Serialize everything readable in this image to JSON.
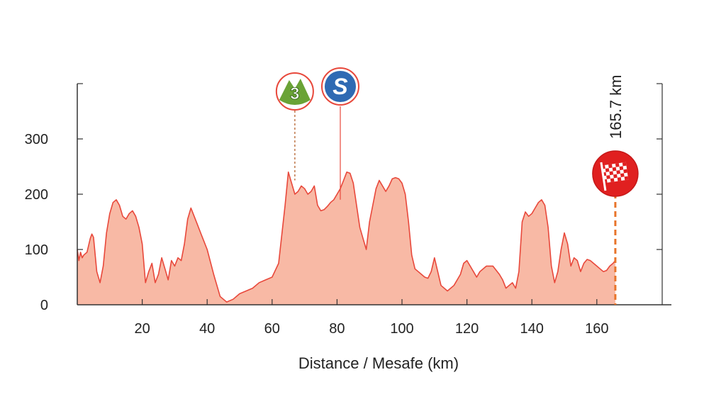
{
  "chart_data": {
    "type": "area",
    "xlabel": "Distance / Mesafe (km)",
    "ylabel": "",
    "xlim": [
      0,
      180
    ],
    "ylim": [
      0,
      400
    ],
    "x_ticks": [
      20,
      40,
      60,
      80,
      100,
      120,
      140,
      160
    ],
    "y_ticks": [
      0,
      100,
      200,
      300
    ],
    "grid": false,
    "colors": {
      "fill": "#f8b9a5",
      "line": "#e8483b",
      "axis": "#333333"
    },
    "series": [
      {
        "x": [
          0,
          0.5,
          1,
          1.5,
          2,
          3,
          4,
          4.5,
          5,
          6,
          7,
          8,
          9,
          10,
          11,
          12,
          13,
          14,
          15,
          16,
          17,
          18,
          19,
          20,
          21,
          22,
          23,
          24,
          25,
          26,
          27,
          28,
          29,
          30,
          31,
          32,
          33,
          34,
          35,
          36,
          37,
          38,
          39,
          40,
          42,
          44,
          46,
          48,
          50,
          52,
          54,
          56,
          58,
          60,
          62,
          64,
          65,
          66,
          67,
          68,
          69,
          70,
          71,
          72,
          73,
          74,
          75,
          76,
          77,
          78,
          79,
          80,
          81,
          82,
          83,
          84,
          85,
          86,
          87,
          88,
          89,
          90,
          91,
          92,
          93,
          94,
          95,
          96,
          97,
          98,
          99,
          100,
          101,
          102,
          103,
          104,
          105,
          106,
          107,
          108,
          109,
          110,
          111,
          112,
          114,
          116,
          118,
          119,
          120,
          121,
          122,
          123,
          124,
          126,
          128,
          130,
          131,
          132,
          133,
          134,
          135,
          136,
          137,
          138,
          139,
          140,
          141,
          142,
          143,
          144,
          145,
          146,
          147,
          148,
          149,
          150,
          151,
          152,
          153,
          154,
          155,
          156,
          157,
          158,
          159,
          160,
          161,
          162,
          163,
          164,
          165,
          165.7
        ],
        "y": [
          100,
          80,
          95,
          85,
          90,
          95,
          120,
          128,
          122,
          60,
          40,
          70,
          130,
          165,
          185,
          190,
          180,
          160,
          155,
          165,
          170,
          160,
          140,
          110,
          40,
          60,
          75,
          40,
          55,
          85,
          65,
          45,
          80,
          70,
          85,
          80,
          110,
          155,
          175,
          160,
          145,
          130,
          115,
          100,
          55,
          15,
          5,
          10,
          20,
          25,
          30,
          40,
          45,
          50,
          75,
          180,
          240,
          220,
          200,
          205,
          215,
          210,
          200,
          205,
          215,
          180,
          170,
          172,
          178,
          185,
          190,
          200,
          210,
          225,
          240,
          238,
          220,
          180,
          140,
          120,
          100,
          150,
          180,
          210,
          225,
          215,
          205,
          215,
          228,
          230,
          228,
          220,
          200,
          150,
          90,
          65,
          60,
          55,
          50,
          48,
          60,
          85,
          60,
          35,
          25,
          35,
          55,
          75,
          80,
          70,
          60,
          50,
          60,
          70,
          70,
          55,
          45,
          30,
          35,
          40,
          30,
          60,
          150,
          168,
          160,
          165,
          175,
          185,
          190,
          180,
          140,
          70,
          40,
          60,
          100,
          130,
          110,
          70,
          85,
          80,
          60,
          75,
          82,
          80,
          75,
          70,
          65,
          60,
          62,
          70,
          75,
          80
        ]
      }
    ],
    "markers": [
      {
        "label": "3",
        "x": 67,
        "kind": "mountain-classification",
        "color": "#6aa336"
      },
      {
        "label": "S",
        "x": 81,
        "kind": "intermediate-sprint",
        "color": "#2f6ab3"
      },
      {
        "label": "165.7 km",
        "x": 165.7,
        "kind": "finish",
        "color": "#e02020"
      }
    ]
  }
}
